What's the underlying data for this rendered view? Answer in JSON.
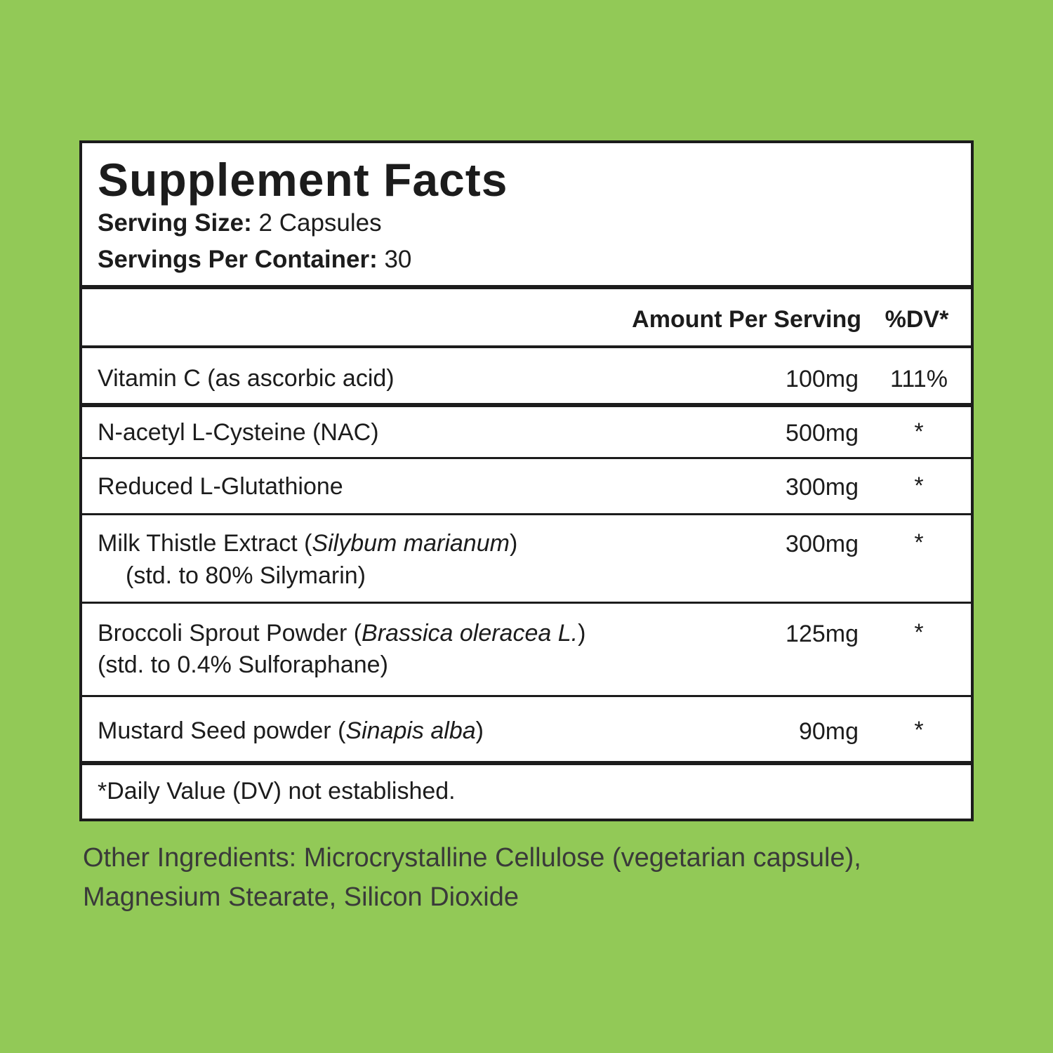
{
  "title": "Supplement Facts",
  "serving_size_label": "Serving Size:",
  "serving_size_value": " 2 Capsules",
  "servings_per_container_label": "Servings Per Container:",
  "servings_per_container_value": " 30",
  "columns": {
    "amount": "Amount Per Serving",
    "dv": "%DV*"
  },
  "rows": [
    {
      "name": "Vitamin C (as ascorbic acid)",
      "latin": "",
      "name_end": "",
      "sub": "",
      "amount": "100mg",
      "dv": "111%"
    },
    {
      "name": "N-acetyl L-Cysteine (NAC)",
      "latin": "",
      "name_end": "",
      "sub": "",
      "amount": "500mg",
      "dv": "*"
    },
    {
      "name": "Reduced L-Glutathione",
      "latin": "",
      "name_end": "",
      "sub": "",
      "amount": "300mg",
      "dv": "*"
    },
    {
      "name": "Milk Thistle Extract (",
      "latin": "Silybum marianum",
      "name_end": ")",
      "sub": "(std. to 80% Silymarin)",
      "amount": "300mg",
      "dv": "*"
    },
    {
      "name": "Broccoli Sprout Powder (",
      "latin": "Brassica oleracea L.",
      "name_end": ")",
      "sub": "(std. to 0.4% Sulforaphane)",
      "amount": "125mg",
      "dv": "*"
    },
    {
      "name": "Mustard Seed powder (",
      "latin": "Sinapis alba",
      "name_end": ")",
      "sub": "",
      "amount": "90mg",
      "dv": "*"
    }
  ],
  "footnote": "*Daily Value (DV) not established.",
  "other_ingredients": "Other Ingredients: Microcrystalline Cellulose (vegetarian capsule), Magnesium Stearate, Silicon Dioxide"
}
